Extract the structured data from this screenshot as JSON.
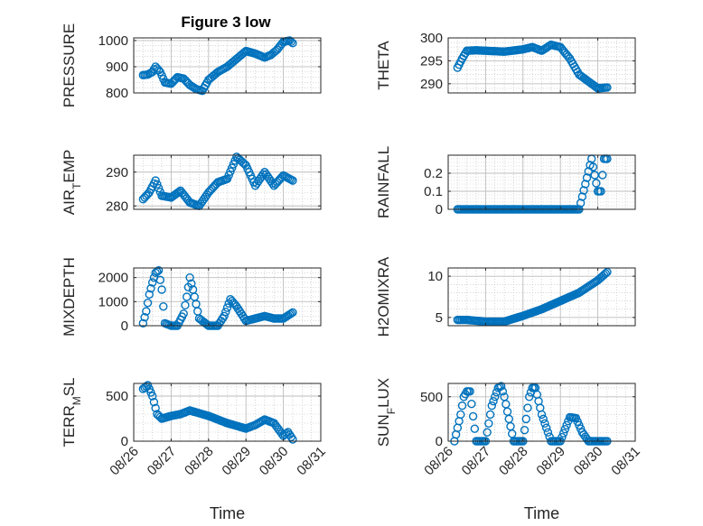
{
  "figure": {
    "title": "Figure 3 low",
    "marker_color": "#0072BD",
    "axis_color": "#262626",
    "grid_color": "#bdbdbd"
  },
  "chart_data": [
    {
      "type": "scatter",
      "ylabel": "PRESSURE",
      "ylim": [
        800,
        1010
      ],
      "yticks": [
        800,
        900,
        1000
      ],
      "xlim": [
        "08/26",
        "08/31"
      ],
      "xticks": [
        "08/26",
        "08/27",
        "08/28",
        "08/29",
        "08/30",
        "08/31"
      ],
      "xlabel": "",
      "grid": true,
      "x": [
        "08/26 06:00",
        "08/26 09:00",
        "08/26 12:00",
        "08/26 14:00",
        "08/26 17:00",
        "08/26 20:00",
        "08/27 00:00",
        "08/27 04:00",
        "08/27 08:00",
        "08/27 12:00",
        "08/27 16:00",
        "08/27 20:00",
        "08/28 00:00",
        "08/28 06:00",
        "08/28 12:00",
        "08/28 18:00",
        "08/29 00:00",
        "08/29 06:00",
        "08/29 12:00",
        "08/29 16:00",
        "08/29 20:00",
        "08/30 00:00",
        "08/30 04:00",
        "08/30 06:00"
      ],
      "y": [
        868,
        870,
        880,
        900,
        880,
        840,
        835,
        860,
        855,
        830,
        815,
        808,
        850,
        880,
        900,
        930,
        960,
        950,
        935,
        945,
        965,
        995,
        1000,
        990
      ]
    },
    {
      "type": "scatter",
      "ylabel": "THETA",
      "ylim": [
        288,
        300
      ],
      "yticks": [
        290,
        295,
        300
      ],
      "xlim": [
        "08/26",
        "08/31"
      ],
      "xticks": [
        "08/26",
        "08/27",
        "08/28",
        "08/29",
        "08/30",
        "08/31"
      ],
      "xlabel": "",
      "grid": true,
      "x": [
        "08/26 06:00",
        "08/26 09:00",
        "08/26 12:00",
        "08/26 18:00",
        "08/27 00:00",
        "08/27 12:00",
        "08/28 00:00",
        "08/28 06:00",
        "08/28 12:00",
        "08/28 18:00",
        "08/29 00:00",
        "08/29 06:00",
        "08/29 12:00",
        "08/29 18:00",
        "08/30 00:00",
        "08/30 06:00"
      ],
      "y": [
        293.5,
        295.5,
        297.2,
        297.3,
        297.2,
        297.0,
        297.5,
        298.0,
        297.2,
        298.5,
        298.0,
        295.5,
        292.0,
        290.5,
        289.0,
        289.2
      ]
    },
    {
      "type": "scatter",
      "ylabel": "AIR",
      "ylabel_sub": "T",
      "ylabel_rest": "EMP",
      "ylim": [
        279,
        295
      ],
      "yticks": [
        280,
        290
      ],
      "xlim": [
        "08/26",
        "08/31"
      ],
      "xticks": [
        "08/26",
        "08/27",
        "08/28",
        "08/29",
        "08/30",
        "08/31"
      ],
      "xlabel": "",
      "grid": true,
      "x": [
        "08/26 06:00",
        "08/26 10:00",
        "08/26 14:00",
        "08/26 18:00",
        "08/27 00:00",
        "08/27 06:00",
        "08/27 12:00",
        "08/27 18:00",
        "08/28 00:00",
        "08/28 06:00",
        "08/28 12:00",
        "08/28 18:00",
        "08/29 00:00",
        "08/29 06:00",
        "08/29 12:00",
        "08/29 18:00",
        "08/30 00:00",
        "08/30 06:00"
      ],
      "y": [
        282,
        284,
        287.5,
        283,
        282.5,
        284.5,
        281,
        280,
        284,
        287,
        288,
        294.5,
        292,
        286,
        290,
        286,
        289,
        287.5
      ]
    },
    {
      "type": "scatter",
      "ylabel": "RAINFALL",
      "ylim": [
        0,
        0.3
      ],
      "yticks": [
        0,
        0.1,
        0.2
      ],
      "xlim": [
        "08/26",
        "08/31"
      ],
      "xticks": [
        "08/26",
        "08/27",
        "08/28",
        "08/29",
        "08/30",
        "08/31"
      ],
      "xlabel": "",
      "grid": true,
      "x": [
        "08/26 06:00",
        "08/26 12:00",
        "08/27 00:00",
        "08/27 12:00",
        "08/28 00:00",
        "08/28 12:00",
        "08/29 00:00",
        "08/29 12:00",
        "08/29 20:00",
        "08/30 00:00",
        "08/30 02:00",
        "08/30 04:00",
        "08/30 06:00"
      ],
      "y": [
        0,
        0,
        0,
        0,
        0,
        0,
        0,
        0,
        0.28,
        0.1,
        0.1,
        0.28,
        0.28
      ]
    },
    {
      "type": "scatter",
      "ylabel": "MIXDEPTH",
      "ylim": [
        0,
        2400
      ],
      "yticks": [
        0,
        1000,
        2000
      ],
      "xlim": [
        "08/26",
        "08/31"
      ],
      "xticks": [
        "08/26",
        "08/27",
        "08/28",
        "08/29",
        "08/30",
        "08/31"
      ],
      "xlabel": "",
      "grid": true,
      "x": [
        "08/26 06:00",
        "08/26 08:00",
        "08/26 10:00",
        "08/26 12:00",
        "08/26 14:00",
        "08/26 16:00",
        "08/26 18:00",
        "08/26 20:00",
        "08/27 00:00",
        "08/27 04:00",
        "08/27 08:00",
        "08/27 10:00",
        "08/27 12:00",
        "08/27 14:00",
        "08/27 18:00",
        "08/28 00:00",
        "08/28 06:00",
        "08/28 10:00",
        "08/28 14:00",
        "08/28 18:00",
        "08/29 00:00",
        "08/29 06:00",
        "08/29 12:00",
        "08/29 18:00",
        "08/30 00:00",
        "08/30 06:00"
      ],
      "y": [
        100,
        600,
        1300,
        1800,
        2200,
        2300,
        1500,
        100,
        0,
        0,
        500,
        1200,
        2000,
        1500,
        300,
        0,
        0,
        400,
        1100,
        800,
        200,
        300,
        400,
        300,
        300,
        550
      ]
    },
    {
      "type": "scatter",
      "ylabel": "H2OMIXRA",
      "ylim": [
        4,
        11
      ],
      "yticks": [
        5,
        10
      ],
      "xlim": [
        "08/26",
        "08/31"
      ],
      "xticks": [
        "08/26",
        "08/27",
        "08/28",
        "08/29",
        "08/30",
        "08/31"
      ],
      "xlabel": "",
      "grid": true,
      "x": [
        "08/26 06:00",
        "08/26 12:00",
        "08/27 00:00",
        "08/27 12:00",
        "08/28 00:00",
        "08/28 12:00",
        "08/29 00:00",
        "08/29 12:00",
        "08/30 00:00",
        "08/30 06:00"
      ],
      "y": [
        4.7,
        4.7,
        4.5,
        4.5,
        5.2,
        6.0,
        7.0,
        8.0,
        9.5,
        10.5
      ]
    },
    {
      "type": "scatter",
      "ylabel": "TERR",
      "ylabel_sub": "M",
      "ylabel_rest": "SL",
      "ylim": [
        0,
        640
      ],
      "yticks": [
        0,
        500
      ],
      "xlim": [
        "08/26",
        "08/31"
      ],
      "xticks": [
        "08/26",
        "08/27",
        "08/28",
        "08/29",
        "08/30",
        "08/31"
      ],
      "xlabel": "Time",
      "grid": true,
      "x": [
        "08/26 06:00",
        "08/26 09:00",
        "08/26 12:00",
        "08/26 15:00",
        "08/26 18:00",
        "08/27 00:00",
        "08/27 06:00",
        "08/27 12:00",
        "08/28 00:00",
        "08/28 12:00",
        "08/29 00:00",
        "08/29 06:00",
        "08/29 12:00",
        "08/29 18:00",
        "08/30 00:00",
        "08/30 03:00",
        "08/30 06:00"
      ],
      "y": [
        580,
        620,
        500,
        300,
        250,
        280,
        300,
        340,
        280,
        200,
        140,
        180,
        240,
        200,
        60,
        100,
        20
      ]
    },
    {
      "type": "scatter",
      "ylabel": "SUN",
      "ylabel_sub": "F",
      "ylabel_rest": "LUX",
      "ylim": [
        0,
        650
      ],
      "yticks": [
        0,
        500
      ],
      "xlim": [
        "08/26",
        "08/31"
      ],
      "xticks": [
        "08/26",
        "08/27",
        "08/28",
        "08/29",
        "08/30",
        "08/31"
      ],
      "xlabel": "Time",
      "grid": true,
      "x": [
        "08/26 04:00",
        "08/26 08:00",
        "08/26 10:00",
        "08/26 12:00",
        "08/26 14:00",
        "08/26 18:00",
        "08/27 00:00",
        "08/27 04:00",
        "08/27 08:00",
        "08/27 10:00",
        "08/27 12:00",
        "08/27 18:00",
        "08/28 00:00",
        "08/28 04:00",
        "08/28 06:00",
        "08/28 08:00",
        "08/28 12:00",
        "08/28 18:00",
        "08/29 00:00",
        "08/29 06:00",
        "08/29 10:00",
        "08/29 14:00",
        "08/29 18:00",
        "08/30 00:00",
        "08/30 06:00"
      ],
      "y": [
        0,
        300,
        500,
        560,
        560,
        0,
        0,
        400,
        600,
        620,
        500,
        0,
        0,
        500,
        600,
        600,
        300,
        0,
        0,
        270,
        260,
        100,
        0,
        0,
        0
      ]
    }
  ]
}
